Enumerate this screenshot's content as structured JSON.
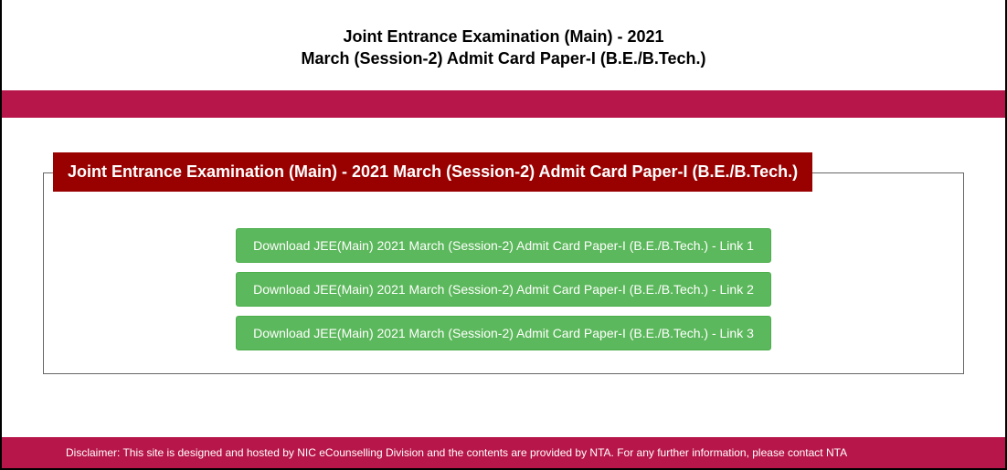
{
  "header": {
    "title_line1": "Joint Entrance Examination (Main) - 2021",
    "title_line2": "March (Session-2) Admit Card Paper-I (B.E./B.Tech.)"
  },
  "panel": {
    "heading": "Joint Entrance Examination (Main) - 2021 March (Session-2) Admit Card Paper-I (B.E./B.Tech.)",
    "links": [
      "Download JEE(Main) 2021 March (Session-2) Admit Card Paper-I (B.E./B.Tech.) - Link 1",
      "Download JEE(Main) 2021 March (Session-2) Admit Card Paper-I (B.E./B.Tech.) - Link 2",
      "Download JEE(Main) 2021 March (Session-2) Admit Card Paper-I (B.E./B.Tech.) - Link 3"
    ]
  },
  "footer": {
    "disclaimer": "Disclaimer: This site is designed and hosted by NIC eCounselling Division and the contents are provided by NTA. For any further information, please contact NTA"
  },
  "colors": {
    "accent_bar": "#b7164a",
    "panel_header": "#990000",
    "button_bg": "#5cb85c",
    "button_border": "#4cae4c"
  }
}
